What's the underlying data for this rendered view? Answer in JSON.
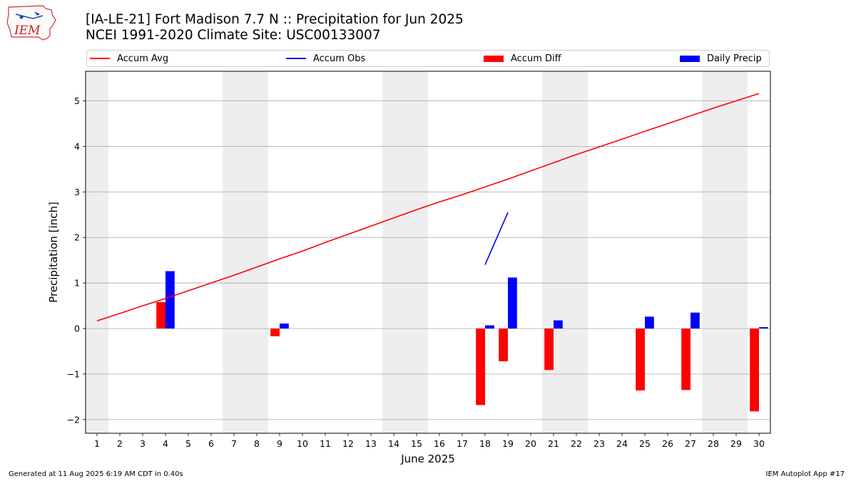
{
  "logo": {
    "text": "IEM"
  },
  "header": {
    "title": "[IA-LE-21] Fort Madison 7.7 N :: Precipitation for Jun 2025",
    "subtitle": "NCEI 1991-2020 Climate Site: USC00133007"
  },
  "footer": {
    "generated": "Generated at 11 Aug 2025 6:19 AM CDT in 0.40s",
    "app": "IEM Autoplot App #17"
  },
  "colors": {
    "accum_avg": "#ff0000",
    "accum_obs": "#0000ff",
    "accum_diff": "#ff0000",
    "daily_precip": "#0000ff",
    "weekend_shade": "#eeeeee",
    "grid": "#b0b0b0"
  },
  "chart_data": {
    "type": "bar",
    "title": "[IA-LE-21] Fort Madison 7.7 N :: Precipitation for Jun 2025",
    "xlabel": "June 2025",
    "ylabel": "Precipitation [inch]",
    "xlim": [
      0.5,
      30.5
    ],
    "ylim": [
      -2.3,
      5.65
    ],
    "grid": "horizontal",
    "legend_placement": "top",
    "x": [
      1,
      2,
      3,
      4,
      5,
      6,
      7,
      8,
      9,
      10,
      11,
      12,
      13,
      14,
      15,
      16,
      17,
      18,
      19,
      20,
      21,
      22,
      23,
      24,
      25,
      26,
      27,
      28,
      29,
      30
    ],
    "x_tick_labels": [
      "1",
      "2",
      "3",
      "4",
      "5",
      "6",
      "7",
      "8",
      "9",
      "10",
      "11",
      "12",
      "13",
      "14",
      "15",
      "16",
      "17",
      "18",
      "19",
      "20",
      "21",
      "22",
      "23",
      "24",
      "25",
      "26",
      "27",
      "28",
      "29",
      "30"
    ],
    "y_ticks": [
      -2,
      -1,
      0,
      1,
      2,
      3,
      4,
      5
    ],
    "y_tick_labels": [
      "−2",
      "−1",
      "0",
      "1",
      "2",
      "3",
      "4",
      "5"
    ],
    "weekend_spans": [
      [
        0.5,
        1.5
      ],
      [
        6.5,
        8.5
      ],
      [
        13.5,
        15.5
      ],
      [
        20.5,
        22.5
      ],
      [
        27.5,
        29.5
      ]
    ],
    "series": [
      {
        "name": "Accum Avg",
        "kind": "line",
        "values": [
          0.17,
          0.33,
          0.5,
          0.66,
          0.83,
          1.0,
          1.17,
          1.35,
          1.53,
          1.7,
          1.89,
          2.07,
          2.25,
          2.43,
          2.61,
          2.78,
          2.94,
          3.11,
          3.28,
          3.46,
          3.64,
          3.82,
          3.99,
          4.16,
          4.33,
          4.5,
          4.67,
          4.84,
          5.0,
          5.16
        ]
      },
      {
        "name": "Accum Obs",
        "kind": "line",
        "values": [
          null,
          null,
          null,
          null,
          null,
          null,
          null,
          null,
          null,
          null,
          null,
          null,
          null,
          null,
          null,
          null,
          null,
          1.4,
          2.55,
          null,
          null,
          null,
          null,
          null,
          null,
          null,
          null,
          null,
          null,
          null
        ]
      },
      {
        "name": "Accum Diff",
        "kind": "bar",
        "values": [
          0,
          0,
          0,
          0.58,
          0,
          0,
          0,
          0,
          -0.17,
          0,
          0,
          0,
          0,
          0,
          0,
          0,
          0,
          -1.68,
          -0.72,
          0,
          -0.91,
          0,
          0,
          0,
          -1.36,
          0,
          -1.35,
          0,
          0,
          -1.82
        ]
      },
      {
        "name": "Daily Precip",
        "kind": "bar",
        "values": [
          0,
          0,
          0,
          1.26,
          0,
          0,
          0,
          0,
          0.11,
          0,
          0,
          0,
          0,
          0,
          0,
          0,
          0,
          0.07,
          1.12,
          0,
          0.18,
          0,
          0,
          0,
          0.26,
          0,
          0.35,
          0,
          0,
          0.03
        ]
      }
    ]
  }
}
